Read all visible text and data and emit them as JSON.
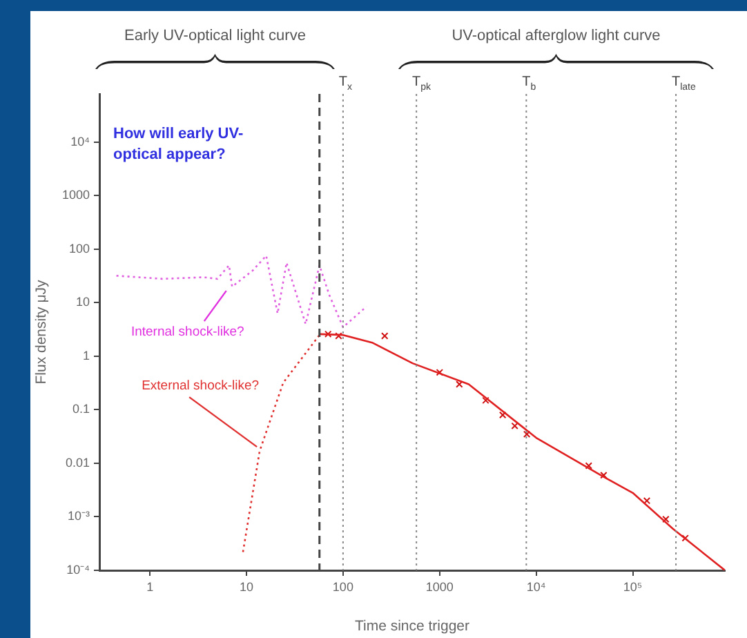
{
  "chart_data": {
    "type": "line",
    "xlabel": "Time since trigger",
    "ylabel": "Flux density μJy",
    "log": "xy",
    "xlim": [
      0.3,
      900000
    ],
    "xticks": [
      1,
      10,
      100,
      1000,
      {
        "value": 10000,
        "label": "10⁴"
      },
      {
        "value": 100000,
        "label": "10⁵"
      }
    ],
    "ylim": [
      0.0001,
      80000
    ],
    "yticks": [
      {
        "value": 0.0001,
        "label": "10⁻⁴"
      },
      {
        "value": 0.001,
        "label": "10⁻³"
      },
      0.01,
      0.1,
      1,
      10,
      100,
      1000,
      {
        "value": 10000,
        "label": "10⁴"
      }
    ],
    "series": [
      {
        "color": "#e060e0",
        "line_style": "dotted",
        "x": [
          0.45,
          1.35,
          3.6,
          5,
          6.6,
          7.1,
          11.6,
          16,
          21,
          26,
          41,
          57,
          72,
          100,
          175
        ],
        "values": [
          32,
          28,
          30,
          28,
          50,
          20,
          40,
          76,
          6.3,
          56,
          4,
          50,
          14,
          3.5,
          8.5
        ]
      },
      {
        "color": "#e03030",
        "line_style": "dotted",
        "x": [
          9.2,
          13.7,
          24,
          57
        ],
        "values": [
          0.00022,
          0.017,
          0.32,
          2.5
        ]
      },
      {
        "color": "#e02020",
        "line_style": "solid",
        "x": [
          57,
          100,
          200,
          525,
          2000,
          10000,
          50000,
          100000,
          260000,
          900000
        ],
        "values": [
          2.6,
          2.5,
          1.8,
          0.74,
          0.3,
          0.03,
          0.0056,
          0.0028,
          0.0006,
          0.0001
        ]
      },
      {
        "type": "scatter",
        "color": "#d01010",
        "marker": "cross",
        "x": [
          70,
          90,
          270,
          1000,
          1600,
          3000,
          4500,
          6000,
          8000,
          35000,
          50000,
          140000,
          220000,
          350000
        ],
        "values": [
          2.6,
          2.4,
          2.4,
          0.5,
          0.3,
          0.15,
          0.08,
          0.05,
          0.035,
          0.009,
          0.006,
          0.002,
          0.0009,
          0.0004
        ]
      }
    ],
    "ref_lines": [
      {
        "axis": "x",
        "value": 57,
        "line_style": "dashed",
        "color": "#444444"
      },
      {
        "axis": "x",
        "value": 100,
        "label": "T$_{x}$",
        "line_style": "dotted",
        "color": "#888888"
      },
      {
        "axis": "x",
        "value": 575,
        "label": "T$_{pk}$",
        "line_style": "dotted",
        "color": "#888888"
      },
      {
        "axis": "x",
        "value": 7900,
        "label": "T$_{b}$",
        "line_style": "dotted",
        "color": "#888888"
      },
      {
        "axis": "x",
        "value": 280000,
        "label": "T$_{late}$",
        "line_style": "dotted",
        "color": "#888888"
      }
    ],
    "annotations": [
      "Early UV-optical light curve",
      "UV-optical afterglow light curve",
      "How will early UV-optical appear?",
      {
        "text": "Internal shock-like?",
        "x": 6.6,
        "y": 20
      },
      {
        "text": "External shock-like?",
        "x": 13.7,
        "y": 0.017
      }
    ]
  }
}
